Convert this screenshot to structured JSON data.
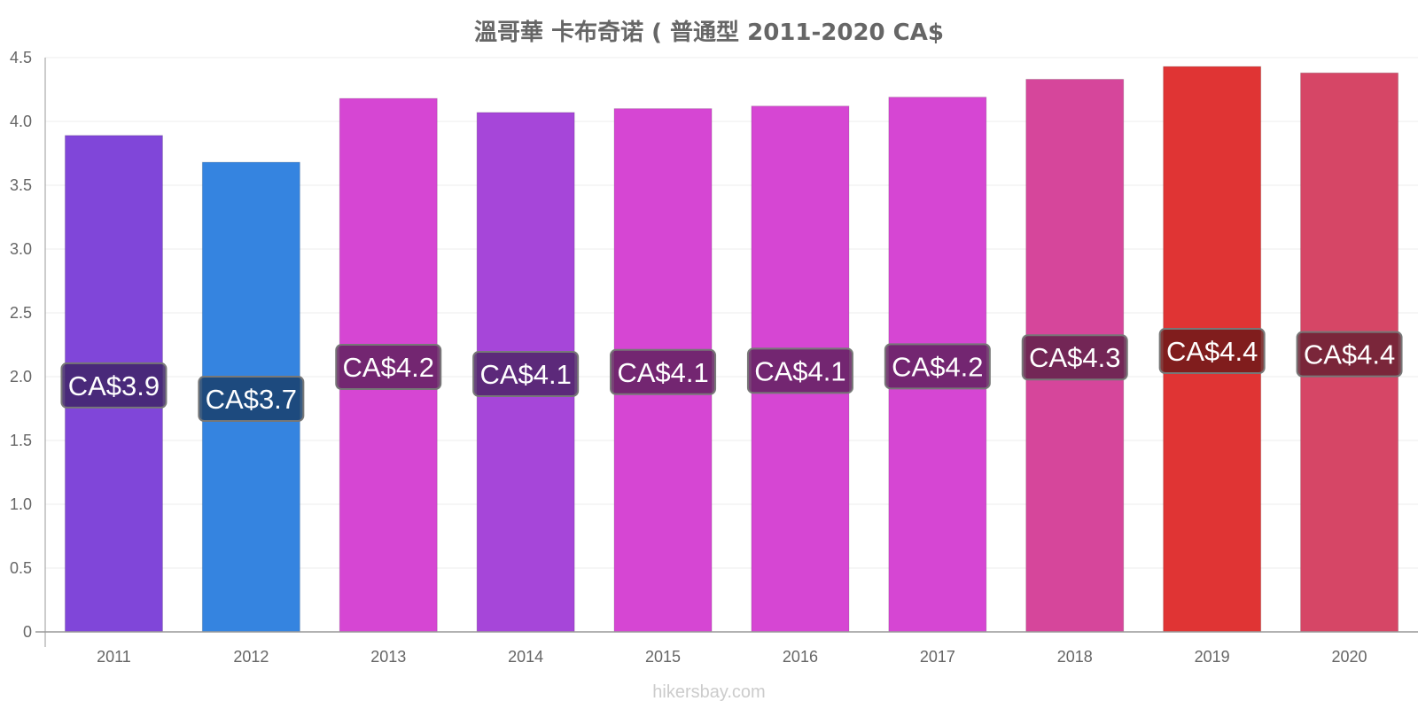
{
  "chart_data": {
    "type": "bar",
    "title": "溫哥華 卡布奇诺 ( 普通型 2011-2020 CA$",
    "categories": [
      "2011",
      "2012",
      "2013",
      "2014",
      "2015",
      "2016",
      "2017",
      "2018",
      "2019",
      "2020"
    ],
    "values": [
      3.89,
      3.68,
      4.18,
      4.07,
      4.1,
      4.12,
      4.19,
      4.33,
      4.43,
      4.38
    ],
    "data_labels": [
      "CA$3.9",
      "CA$3.7",
      "CA$4.2",
      "CA$4.1",
      "CA$4.1",
      "CA$4.1",
      "CA$4.2",
      "CA$4.3",
      "CA$4.4",
      "CA$4.4"
    ],
    "bar_colors": [
      "#8046d9",
      "#3584e0",
      "#d646d3",
      "#a646d9",
      "#d646d3",
      "#d646d3",
      "#d646d3",
      "#d6469b",
      "#e03434",
      "#d64666"
    ],
    "label_bg_colors": [
      "#3f2468",
      "#19406c",
      "#62215f",
      "#4f2469",
      "#62215f",
      "#62215f",
      "#62215f",
      "#62214a",
      "#6f1a1a",
      "#6a2133"
    ],
    "y_ticks": [
      "0",
      "0.5",
      "1.0",
      "1.5",
      "2.0",
      "2.5",
      "3.0",
      "3.5",
      "4.0",
      "4.5"
    ],
    "ylim": [
      0,
      4.5
    ],
    "xlabel": "",
    "ylabel": "",
    "grid": true,
    "legend": "none"
  },
  "watermark": "hikersbay.com"
}
